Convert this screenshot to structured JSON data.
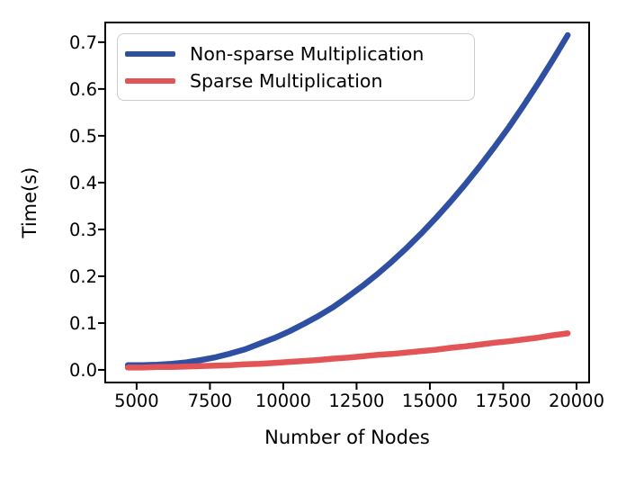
{
  "chart_data": {
    "type": "line",
    "title": "",
    "xlabel": "Number of Nodes",
    "ylabel": "Time(s)",
    "xlim": [
      3930,
      20430
    ],
    "ylim": [
      -0.027,
      0.742
    ],
    "grid": false,
    "legend_position": "upper left",
    "axis_color": "#000000",
    "x_ticks": [
      {
        "value": 5000,
        "label": "5000"
      },
      {
        "value": 7500,
        "label": "7500"
      },
      {
        "value": 10000,
        "label": "10000"
      },
      {
        "value": 12500,
        "label": "12500"
      },
      {
        "value": 15000,
        "label": "15000"
      },
      {
        "value": 17500,
        "label": "17500"
      },
      {
        "value": 20000,
        "label": "20000"
      }
    ],
    "y_ticks": [
      {
        "value": 0.0,
        "label": "0.0"
      },
      {
        "value": 0.1,
        "label": "0.1"
      },
      {
        "value": 0.2,
        "label": "0.2"
      },
      {
        "value": 0.3,
        "label": "0.3"
      },
      {
        "value": 0.4,
        "label": "0.4"
      },
      {
        "value": 0.5,
        "label": "0.5"
      },
      {
        "value": 0.6,
        "label": "0.6"
      },
      {
        "value": 0.7,
        "label": "0.7"
      }
    ],
    "x": [
      4700,
      5200,
      5700,
      6200,
      6700,
      7200,
      7700,
      8200,
      8700,
      9200,
      9700,
      10200,
      10700,
      11200,
      11700,
      12200,
      12700,
      13200,
      13700,
      14200,
      14700,
      15200,
      15700,
      16200,
      16700,
      17200,
      17700,
      18200,
      18700,
      19200,
      19700
    ],
    "series": [
      {
        "name": "Non-sparse Multiplication",
        "color": "#2e4fa2",
        "values": [
          0.01,
          0.01,
          0.011,
          0.013,
          0.016,
          0.021,
          0.027,
          0.035,
          0.044,
          0.056,
          0.068,
          0.082,
          0.098,
          0.115,
          0.134,
          0.156,
          0.179,
          0.204,
          0.231,
          0.26,
          0.291,
          0.324,
          0.359,
          0.396,
          0.435,
          0.476,
          0.519,
          0.565,
          0.613,
          0.663,
          0.715
        ]
      },
      {
        "name": "Sparse Multiplication",
        "color": "#e35456",
        "values": [
          0.005,
          0.005,
          0.006,
          0.006,
          0.007,
          0.008,
          0.009,
          0.01,
          0.012,
          0.013,
          0.015,
          0.017,
          0.019,
          0.021,
          0.024,
          0.026,
          0.029,
          0.032,
          0.034,
          0.037,
          0.04,
          0.043,
          0.047,
          0.05,
          0.054,
          0.058,
          0.061,
          0.065,
          0.069,
          0.074,
          0.078
        ]
      }
    ]
  }
}
